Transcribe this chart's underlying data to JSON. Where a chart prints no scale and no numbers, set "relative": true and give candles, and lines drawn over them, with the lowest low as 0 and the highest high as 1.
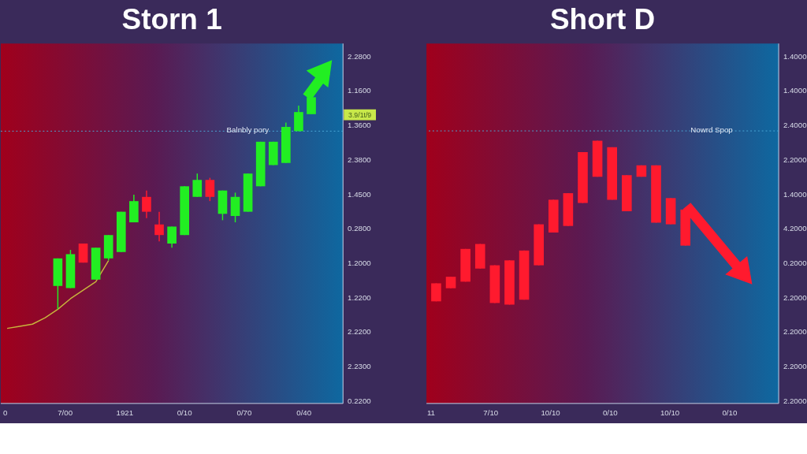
{
  "chart_data": [
    {
      "type": "candlestick",
      "title": "Storn 1",
      "relative": true,
      "categories": [
        null,
        null,
        null,
        null,
        null,
        null,
        null,
        null,
        null,
        null,
        null,
        null,
        null,
        null,
        null,
        null,
        null,
        null,
        null,
        null,
        null,
        null,
        null,
        null,
        null
      ],
      "ohlc": [
        null,
        null,
        null,
        null,
        [
          0.11,
          0.24,
          0,
          0.24
        ],
        [
          0.1,
          0.28,
          0.1,
          0.26
        ],
        [
          0.31,
          0.31,
          0.22,
          0.22
        ],
        [
          0.14,
          0.29,
          0.14,
          0.29
        ],
        [
          0.24,
          0.35,
          0.23,
          0.35
        ],
        [
          0.27,
          0.46,
          0.27,
          0.46
        ],
        [
          0.41,
          0.54,
          0.41,
          0.51
        ],
        [
          0.53,
          0.56,
          0.43,
          0.46
        ],
        [
          0.4,
          0.46,
          0.32,
          0.35
        ],
        [
          0.31,
          0.39,
          0.29,
          0.39
        ],
        [
          0.35,
          0.58,
          0.35,
          0.58
        ],
        [
          0.53,
          0.64,
          0.53,
          0.61
        ],
        [
          0.61,
          0.62,
          0.51,
          0.53
        ],
        [
          0.45,
          0.56,
          0.42,
          0.56
        ],
        [
          0.44,
          0.55,
          0.41,
          0.53
        ],
        [
          0.46,
          0.64,
          0.46,
          0.64
        ],
        [
          0.58,
          0.79,
          0.58,
          0.79
        ],
        [
          0.68,
          0.79,
          0.68,
          0.79
        ],
        [
          0.69,
          0.88,
          0.69,
          0.86
        ],
        [
          0.84,
          0.96,
          0.84,
          0.93
        ],
        [
          0.92,
          1,
          0.92,
          1
        ]
      ],
      "colors": [
        null,
        null,
        null,
        null,
        "#22ee22",
        "#22ee22",
        "#ff1a2e",
        "#22ee22",
        "#22ee22",
        "#22ee22",
        "#22ee22",
        "#ff1a2e",
        "#ff1a2e",
        "#22ee22",
        "#22ee22",
        "#22ee22",
        "#ff1a2e",
        "#22ee22",
        "#22ee22",
        "#22ee22",
        "#22ee22",
        "#22ee22",
        "#22ee22",
        "#22ee22",
        "#22ee22"
      ],
      "series": [
        {
          "type": "line",
          "color": "#c8b43c",
          "values": [
            -0.09,
            -0.08,
            -0.07,
            -0.04,
            0,
            0.05,
            0.09,
            0.13,
            0.23,
            null,
            null,
            null,
            null,
            null,
            null,
            null,
            null,
            null,
            null,
            null,
            null,
            null,
            null,
            null,
            null
          ]
        }
      ],
      "ref_lines": [
        {
          "axis": "y",
          "value": 0.84,
          "label": "Balnbly pory",
          "color": "#4aa8d8",
          "line_style": "dotted"
        }
      ],
      "annotations": [
        "2.2800",
        "1.1600",
        "1.3600",
        "2.3800",
        "1.4500",
        "0.2800",
        "1.2000",
        "1.2200",
        "2.2200",
        "2.2300",
        "0.2200",
        "0",
        "7/00",
        "1921",
        "0/10",
        "0/70",
        "0/40",
        "3.9/1t/9"
      ]
    },
    {
      "type": "candlestick",
      "title": "Short D",
      "relative": true,
      "categories": [
        null,
        null,
        null,
        null,
        null,
        null,
        null,
        null,
        null,
        null,
        null,
        null,
        null,
        null,
        null,
        null,
        null,
        null
      ],
      "ohlc": [
        [
          0.13,
          0.13,
          0.02,
          0.02
        ],
        [
          0.17,
          0.17,
          0.1,
          0.1
        ],
        [
          0.34,
          0.34,
          0.14,
          0.14
        ],
        [
          0.37,
          0.37,
          0.22,
          0.22
        ],
        [
          0.24,
          0.24,
          0.01,
          0.01
        ],
        [
          0.27,
          0.27,
          0,
          0
        ],
        [
          0.33,
          0.33,
          0.03,
          0.03
        ],
        [
          0.49,
          0.49,
          0.24,
          0.24
        ],
        [
          0.64,
          0.64,
          0.44,
          0.44
        ],
        [
          0.68,
          0.68,
          0.48,
          0.48
        ],
        [
          0.93,
          0.93,
          0.62,
          0.62
        ],
        [
          1,
          1,
          0.78,
          0.78
        ],
        [
          0.96,
          0.96,
          0.64,
          0.64
        ],
        [
          0.79,
          0.79,
          0.57,
          0.57
        ],
        [
          0.85,
          0.85,
          0.78,
          0.78
        ],
        [
          0.85,
          0.85,
          0.5,
          0.5
        ],
        [
          0.65,
          0.65,
          0.49,
          0.49
        ],
        [
          0.58,
          0.58,
          0.36,
          0.36
        ]
      ],
      "colors": [
        "#ff1a2e",
        "#ff1a2e",
        "#ff1a2e",
        "#ff1a2e",
        "#ff1a2e",
        "#ff1a2e",
        "#ff1a2e",
        "#ff1a2e",
        "#ff1a2e",
        "#ff1a2e",
        "#ff1a2e",
        "#ff1a2e",
        "#ff1a2e",
        "#ff1a2e",
        "#ff1a2e",
        "#ff1a2e",
        "#ff1a2e",
        "#ff1a2e"
      ],
      "ref_lines": [
        {
          "axis": "y",
          "value": 1.06,
          "label": "Nowrd Spop",
          "color": "#4aa8d8",
          "line_style": "dotted"
        }
      ],
      "annotations": [
        "1.4000",
        "1.4000",
        "2.4000",
        "2.2000",
        "1.4000",
        "4.2000",
        "0.2000",
        "2.2000",
        "2.2000",
        "2.2000",
        "2.2000",
        "11",
        "7/10",
        "10/10",
        "0/10",
        "10/10",
        "0/10"
      ]
    }
  ]
}
